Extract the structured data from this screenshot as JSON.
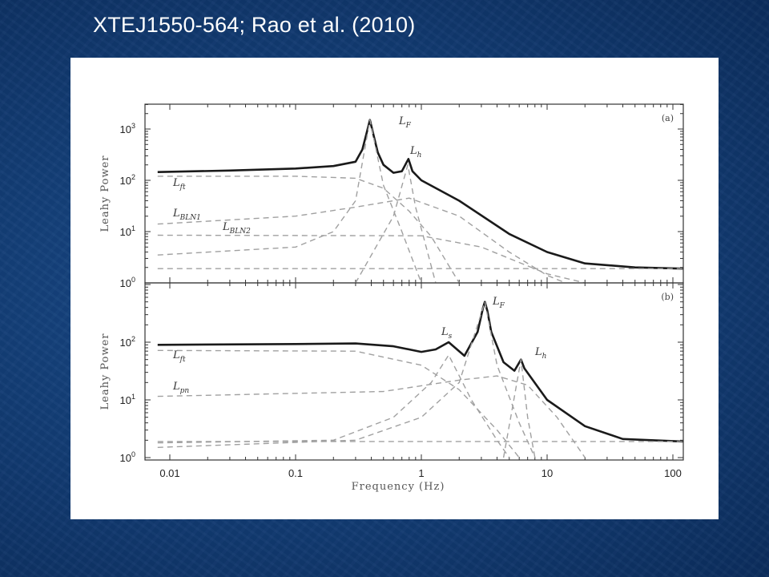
{
  "slide": {
    "title": "XTEJ1550-564; Rao et al. (2010)"
  },
  "colors": {
    "background": "#143f78",
    "model": "#1a1a1a",
    "components": "#999999",
    "title": "#ffffff"
  },
  "chart_data": [
    {
      "type": "line",
      "panel_label": "(a)",
      "xlabel": "",
      "ylabel": "Leahy Power",
      "xscale": "log",
      "yscale": "log",
      "xlim": [
        0.0064,
        121
      ],
      "ylim": [
        1,
        3000
      ],
      "yticks": [
        "10^3",
        "10^2",
        "10^1",
        "10^0"
      ],
      "series": [
        {
          "style": "solid",
          "x": [
            0.008,
            0.03,
            0.1,
            0.2,
            0.3,
            0.34,
            0.37,
            0.39,
            0.41,
            0.45,
            0.5,
            0.6,
            0.7,
            0.76,
            0.79,
            0.85,
            1,
            2,
            5,
            10,
            20,
            50,
            120
          ],
          "y": [
            145,
            155,
            170,
            190,
            230,
            400,
            900,
            1500,
            900,
            350,
            200,
            140,
            150,
            220,
            260,
            150,
            100,
            40,
            9,
            4,
            2.4,
            2,
            1.9
          ]
        },
        {
          "name": "L_ft",
          "style": "dashed",
          "x": [
            0.008,
            0.1,
            0.3,
            0.5,
            0.8,
            1.2,
            2
          ],
          "y": [
            120,
            120,
            110,
            70,
            25,
            8,
            1
          ]
        },
        {
          "name": "L_BLN1",
          "style": "dashed",
          "x": [
            0.008,
            0.1,
            0.3,
            0.8,
            2,
            5,
            10,
            14
          ],
          "y": [
            14,
            20,
            30,
            45,
            20,
            4,
            1.4,
            1
          ]
        },
        {
          "name": "L_BLN2",
          "style": "dashed",
          "x": [
            0.008,
            1,
            3,
            10,
            20
          ],
          "y": [
            8.5,
            8.3,
            5,
            1.5,
            1
          ]
        },
        {
          "name": "L_F",
          "style": "dashed",
          "x": [
            0.008,
            0.1,
            0.2,
            0.3,
            0.39,
            0.5,
            0.7,
            1
          ],
          "y": [
            3.5,
            5,
            10,
            40,
            1500,
            80,
            10,
            1
          ]
        },
        {
          "name": "L_h",
          "style": "dashed",
          "x": [
            0.3,
            0.6,
            0.78,
            0.9,
            1.3
          ],
          "y": [
            1,
            20,
            200,
            30,
            1
          ]
        },
        {
          "style": "dashed",
          "x": [
            0.008,
            120
          ],
          "y": [
            1.9,
            1.9
          ]
        }
      ],
      "annotations": [
        {
          "main": "L",
          "sub": "F"
        },
        {
          "main": "L",
          "sub": "h"
        },
        {
          "main": "L",
          "sub": "ft"
        },
        {
          "main": "L",
          "sub": "BLN1"
        },
        {
          "main": "L",
          "sub": "BLN2"
        }
      ]
    },
    {
      "type": "line",
      "panel_label": "(b)",
      "xlabel": "Frequency (Hz)",
      "ylabel": "Leahy Power",
      "xscale": "log",
      "yscale": "log",
      "xlim": [
        0.0064,
        121
      ],
      "ylim": [
        1,
        1000
      ],
      "xticks": [
        "0.01",
        "0.1",
        "1",
        "10",
        "100"
      ],
      "yticks": [
        "10^2",
        "10^1",
        "10^0"
      ],
      "series": [
        {
          "style": "solid",
          "x": [
            0.008,
            0.1,
            0.3,
            0.6,
            1,
            1.3,
            1.65,
            2.2,
            2.8,
            3.1,
            3.2,
            3.35,
            3.6,
            4.5,
            5.5,
            6.2,
            6.6,
            10,
            20,
            40,
            120
          ],
          "y": [
            90,
            93,
            95,
            85,
            68,
            75,
            100,
            58,
            150,
            400,
            500,
            350,
            150,
            45,
            32,
            50,
            35,
            10,
            3.5,
            2.1,
            1.9
          ]
        },
        {
          "name": "L_ft",
          "style": "dashed",
          "x": [
            0.008,
            0.3,
            1,
            2,
            4,
            6
          ],
          "y": [
            72,
            70,
            40,
            15,
            3,
            1
          ]
        },
        {
          "name": "L_pn",
          "style": "dashed",
          "x": [
            0.008,
            0.5,
            2,
            4,
            7,
            12,
            20
          ],
          "y": [
            11.5,
            14,
            22,
            26,
            18,
            5,
            1
          ]
        },
        {
          "name": "L_s",
          "style": "dashed",
          "x": [
            0.008,
            0.2,
            0.6,
            1.2,
            1.65,
            2.5,
            4,
            5
          ],
          "y": [
            1.8,
            2,
            5,
            20,
            60,
            10,
            2,
            1
          ]
        },
        {
          "name": "L_F",
          "style": "dashed",
          "x": [
            0.008,
            0.3,
            1,
            2,
            3.2,
            4,
            6,
            8
          ],
          "y": [
            1.5,
            2,
            5,
            20,
            500,
            40,
            4,
            1
          ]
        },
        {
          "name": "L_h",
          "style": "dashed",
          "x": [
            4.5,
            6.2,
            7,
            8
          ],
          "y": [
            1,
            50,
            5,
            1
          ]
        },
        {
          "style": "dashed",
          "x": [
            0.008,
            120
          ],
          "y": [
            1.9,
            1.9
          ]
        }
      ],
      "annotations": [
        {
          "main": "L",
          "sub": "s"
        },
        {
          "main": "L",
          "sub": "F"
        },
        {
          "main": "L",
          "sub": "h"
        },
        {
          "main": "L",
          "sub": "ft"
        },
        {
          "main": "L",
          "sub": "pn"
        }
      ]
    }
  ]
}
